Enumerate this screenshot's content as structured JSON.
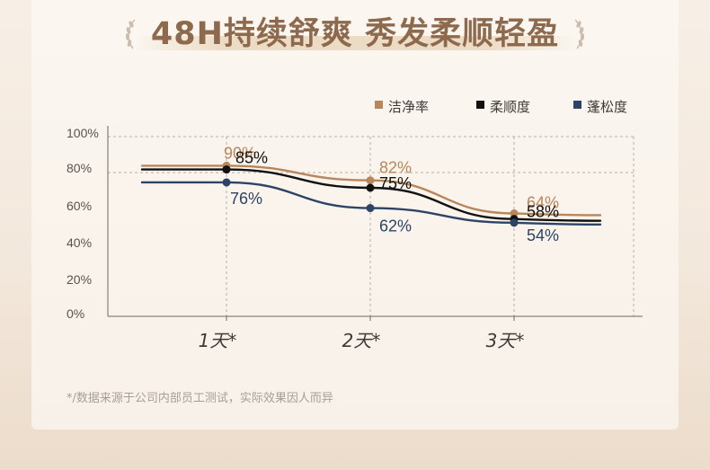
{
  "title": "48H持续舒爽 秀发柔顺轻盈",
  "footnote": "*/数据来源于公司内部员工测试，实际效果因人而异",
  "colors": {
    "accent": "#8d6a4e",
    "clean": "#b8865a",
    "smooth": "#111111",
    "fluffy": "#2d4466"
  },
  "chart_data": {
    "type": "line",
    "categories": [
      "1天*",
      "2天*",
      "3天*"
    ],
    "y_ticks": [
      "100%",
      "80%",
      "60%",
      "40%",
      "20%",
      "0%"
    ],
    "ylim": [
      0,
      100
    ],
    "grid": true,
    "legend_position": "top-right",
    "series": [
      {
        "name": "洁净率",
        "values": [
          90,
          82,
          64
        ],
        "labels": [
          "90%",
          "82%",
          "64%"
        ],
        "color": "#b8865a"
      },
      {
        "name": "柔顺度",
        "values": [
          85,
          75,
          58
        ],
        "labels": [
          "85%",
          "75%",
          "58%"
        ],
        "color": "#111111"
      },
      {
        "name": "蓬松度",
        "values": [
          76,
          62,
          54
        ],
        "labels": [
          "76%",
          "62%",
          "54%"
        ],
        "color": "#2d4466"
      }
    ]
  }
}
